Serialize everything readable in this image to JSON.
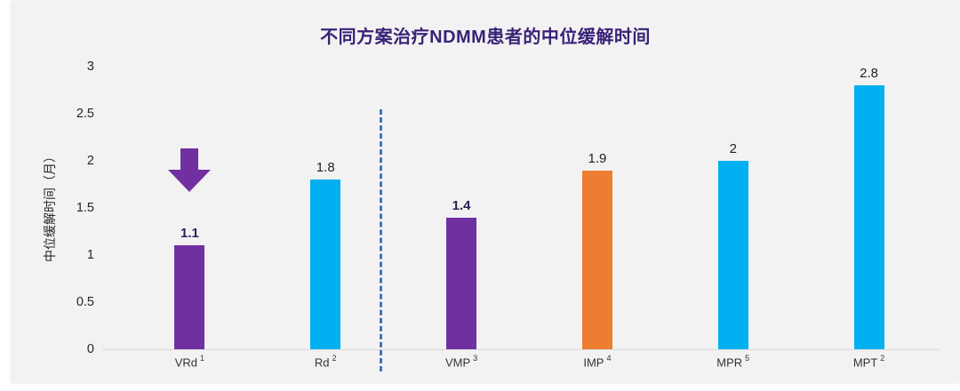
{
  "window": {
    "background": "#FFFFFF",
    "panel_background": "#F2F2F2"
  },
  "chart_data": {
    "type": "bar",
    "title": "不同方案治疗NDMM患者的中位缓解时间",
    "title_color": "#3A2277",
    "xlabel": "",
    "ylabel": "中位缓解时间（月）",
    "ylim": [
      0,
      3
    ],
    "yticks": [
      "3",
      "2.5",
      "2",
      "1.5",
      "1",
      "0.5",
      "0"
    ],
    "ytick_values": [
      3,
      2.5,
      2,
      1.5,
      1,
      0.5,
      0
    ],
    "grid": false,
    "legend": "none",
    "categories": [
      "VRd",
      "Rd",
      "VMP",
      "IMP",
      "MPR",
      "MPT"
    ],
    "category_superscripts": [
      "1",
      "2",
      "3",
      "4",
      "5",
      "2"
    ],
    "values": [
      1.1,
      1.8,
      1.4,
      1.9,
      2,
      2.8
    ],
    "value_labels": [
      "1.1",
      "1.8",
      "1.4",
      "1.9",
      "2",
      "2.8"
    ],
    "bar_colors": [
      "#7030A0",
      "#00B0F0",
      "#7030A0",
      "#ED7D31",
      "#00B0F0",
      "#00B0F0"
    ],
    "value_label_colors": [
      "#2E2159",
      "#1F1F1F",
      "#2E2159",
      "#1F1F1F",
      "#1F1F1F",
      "#1F1F1F"
    ],
    "value_label_bold": [
      true,
      false,
      true,
      false,
      false,
      false
    ],
    "axis_line_color": "#D9D9D9",
    "tick_text_color": "#262626",
    "category_text_color": "#333333",
    "annotations": [
      {
        "name": "highlight-arrow",
        "type": "down-arrow",
        "color": "#7030A0",
        "target_category": "VRd"
      },
      {
        "name": "group-separator",
        "type": "dashed-vertical-line",
        "color": "#4472C4",
        "between": [
          "Rd",
          "VMP"
        ]
      }
    ]
  }
}
